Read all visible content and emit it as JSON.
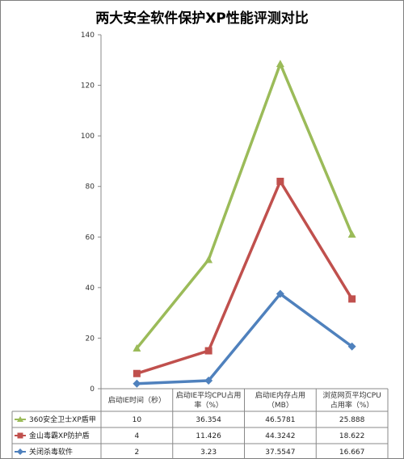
{
  "chart_data": {
    "type": "line",
    "title": "两大安全软件保护XP性能评测对比",
    "categories": [
      [
        "启动IE时间（秒）"
      ],
      [
        "启动IE平均CPU占用",
        "率（%）"
      ],
      [
        "启动IE内存占用",
        "（MB）"
      ],
      [
        "浏览网页平均CPU",
        "占用率（%）"
      ]
    ],
    "ylim": [
      0,
      140
    ],
    "yticks": [
      "0",
      "20",
      "40",
      "60",
      "80",
      "100",
      "120",
      "140"
    ],
    "grid": false,
    "legend_placement": "left, in data table",
    "series": [
      {
        "name": "360安全卫士XP盾甲",
        "values": [
          16,
          51,
          128.5,
          61
        ],
        "table": [
          "10",
          "36.354",
          "46.5781",
          "25.888"
        ],
        "color": "#9bbb59",
        "marker": "triangle"
      },
      {
        "name": "金山毒霸XP防护盾",
        "values": [
          6,
          15,
          82,
          35.5
        ],
        "table": [
          "4",
          "11.426",
          "44.3242",
          "18.622"
        ],
        "color": "#c0504d",
        "marker": "square"
      },
      {
        "name": "关闭杀毒软件",
        "values": [
          2,
          3.2,
          37.5,
          16.7
        ],
        "table": [
          "2",
          "3.23",
          "37.5547",
          "16.667"
        ],
        "color": "#4f81bd",
        "marker": "diamond"
      }
    ]
  }
}
